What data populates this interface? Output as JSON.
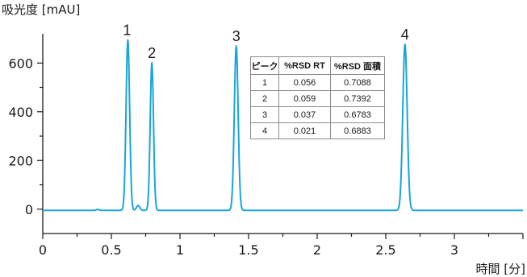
{
  "chart_data": {
    "type": "line",
    "ylabel": "吸光度 [mAU]",
    "xlabel": "時間 [分]",
    "xlim": [
      0,
      3.5
    ],
    "ylim": [
      -100,
      720
    ],
    "x_ticks": [
      "0",
      "0.5",
      "1",
      "1.5",
      "2",
      "2.5",
      "3"
    ],
    "x_tick_values": [
      0,
      0.5,
      1,
      1.5,
      2,
      2.5,
      3
    ],
    "y_ticks": [
      "0",
      "200",
      "400",
      "600"
    ],
    "y_tick_values": [
      0,
      200,
      400,
      600
    ],
    "series_color": "#1aa5d8",
    "baseline": -5,
    "peaks": [
      {
        "label": "1",
        "rt": 0.62,
        "height": 700,
        "width": 0.013
      },
      {
        "label": "2",
        "rt": 0.795,
        "height": 606,
        "width": 0.012
      },
      {
        "label": "3",
        "rt": 1.41,
        "height": 675,
        "width": 0.014
      },
      {
        "label": "4",
        "rt": 2.64,
        "height": 682,
        "width": 0.016
      }
    ],
    "minor_features": [
      {
        "rt": 0.4,
        "height": 4,
        "width": 0.01
      },
      {
        "rt": 0.695,
        "height": 20,
        "width": 0.012
      }
    ]
  },
  "table": {
    "headers": [
      "ピーク",
      "%RSD RT",
      "%RSD 面積"
    ],
    "rows": [
      [
        "1",
        "0.056",
        "0.7088"
      ],
      [
        "2",
        "0.059",
        "0.7392"
      ],
      [
        "3",
        "0.037",
        "0.6783"
      ],
      [
        "4",
        "0.021",
        "0.6883"
      ]
    ]
  }
}
